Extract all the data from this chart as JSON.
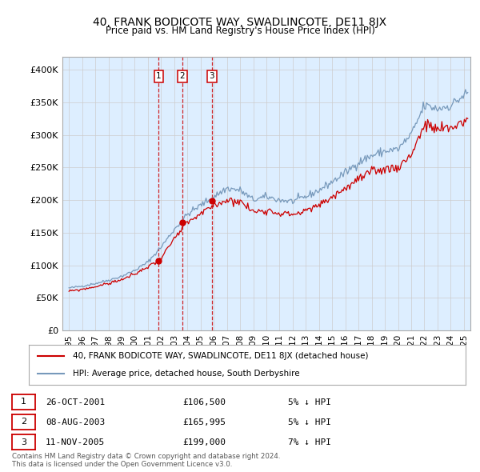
{
  "title": "40, FRANK BODICOTE WAY, SWADLINCOTE, DE11 8JX",
  "subtitle": "Price paid vs. HM Land Registry's House Price Index (HPI)",
  "legend_label_red": "40, FRANK BODICOTE WAY, SWADLINCOTE, DE11 8JX (detached house)",
  "legend_label_blue": "HPI: Average price, detached house, South Derbyshire",
  "transactions": [
    {
      "label": "1",
      "date": "26-OCT-2001",
      "price": "£106,500",
      "note": "5% ↓ HPI",
      "x_year": 2001.82,
      "y_val": 106500
    },
    {
      "label": "2",
      "date": "08-AUG-2003",
      "price": "£165,995",
      "note": "5% ↓ HPI",
      "x_year": 2003.6,
      "y_val": 165995
    },
    {
      "label": "3",
      "date": "11-NOV-2005",
      "price": "£199,000",
      "note": "7% ↓ HPI",
      "x_year": 2005.86,
      "y_val": 199000
    }
  ],
  "footer_line1": "Contains HM Land Registry data © Crown copyright and database right 2024.",
  "footer_line2": "This data is licensed under the Open Government Licence v3.0.",
  "xlim": [
    1994.5,
    2025.5
  ],
  "ylim": [
    0,
    420000
  ],
  "yticks": [
    0,
    50000,
    100000,
    150000,
    200000,
    250000,
    300000,
    350000,
    400000
  ],
  "ytick_labels": [
    "£0",
    "£50K",
    "£100K",
    "£150K",
    "£200K",
    "£250K",
    "£300K",
    "£350K",
    "£400K"
  ],
  "xticks": [
    1995,
    1996,
    1997,
    1998,
    1999,
    2000,
    2001,
    2002,
    2003,
    2004,
    2005,
    2006,
    2007,
    2008,
    2009,
    2010,
    2011,
    2012,
    2013,
    2014,
    2015,
    2016,
    2017,
    2018,
    2019,
    2020,
    2021,
    2022,
    2023,
    2024,
    2025
  ],
  "red_color": "#cc0000",
  "blue_color": "#7799bb",
  "dashed_color": "#cc0000",
  "grid_color": "#cccccc",
  "bg_color": "#ffffff",
  "plot_bg_color": "#ddeeff",
  "hpi_blue": "#7799bb"
}
